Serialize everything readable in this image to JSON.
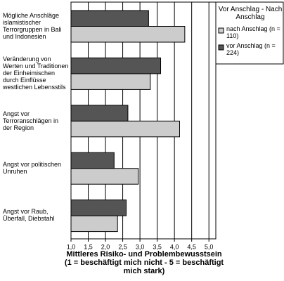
{
  "chart_data": {
    "type": "barh",
    "legend_title": "Vor Anschlag - Nach Anschlag",
    "xlabel": "Mittleres Risiko- und Problembewusstsein (1 = beschäftigt mich nicht - 5 = beschäftigt mich stark)",
    "categories": [
      "Mögliche Anschläge islamistischer Terrorgruppen in Bali und Indonesien",
      "Veränderung von Werten und Traditionen der Einheimischen durch Einflüsse westlichen Lebensstils",
      "Angst vor Terroranschlägen in der Region",
      "Angst vor politischen Unruhen",
      "Angst vor Raub, Überfall, Diebstahl"
    ],
    "series": [
      {
        "name": "nach Anschlag (n = 110)",
        "color": "#cccccc",
        "values": [
          4.3,
          3.3,
          4.15,
          2.95,
          2.35
        ]
      },
      {
        "name": "vor Anschlag (n = 224)",
        "color": "#555555",
        "values": [
          3.25,
          3.6,
          2.65,
          2.25,
          2.6
        ]
      }
    ],
    "xlim": [
      1,
      5.2
    ],
    "xticks": [
      {
        "value": 1,
        "label": "1,0"
      },
      {
        "value": 1.5,
        "label": "1,5"
      },
      {
        "value": 2,
        "label": "2,0"
      },
      {
        "value": 2.5,
        "label": "2,5"
      },
      {
        "value": 3,
        "label": "3,0"
      },
      {
        "value": 3.5,
        "label": "3,5"
      },
      {
        "value": 4,
        "label": "4,0"
      },
      {
        "value": 4.5,
        "label": "4,5"
      },
      {
        "value": 5,
        "label": "5,0"
      }
    ],
    "grid": true
  }
}
